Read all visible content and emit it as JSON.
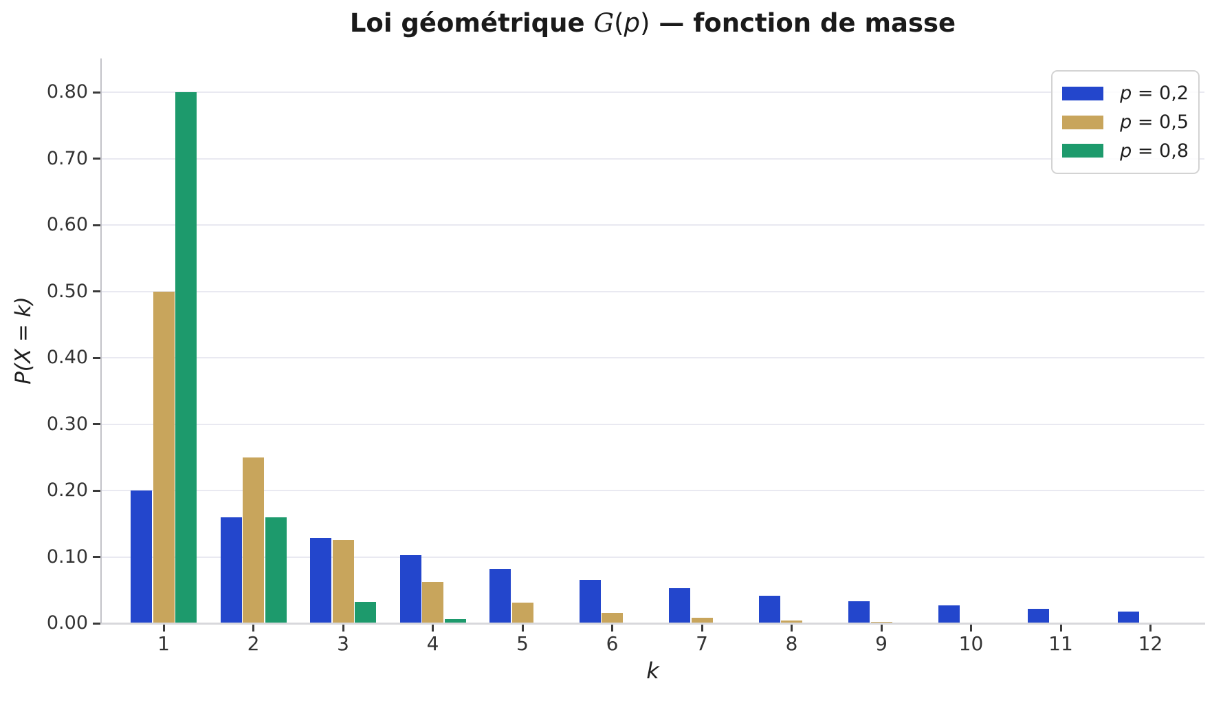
{
  "title": {
    "full_text": "Loi géométrique 𝒢(p) — fonction de masse",
    "segments": [
      {
        "text": "Loi géométrique "
      },
      {
        "text": "G"
      },
      {
        "text": "("
      },
      {
        "text": "p"
      },
      {
        "text": ")"
      },
      {
        "text": " — fonction de masse"
      }
    ]
  },
  "legend": {
    "entries": [
      {
        "var": "p",
        "rest": " = 0,2",
        "color": "#2346cc"
      },
      {
        "var": "p",
        "rest": " = 0,5",
        "color": "#c8a55c"
      },
      {
        "var": "p",
        "rest": " = 0,8",
        "color": "#1d9a6c"
      }
    ]
  },
  "chart_data": {
    "type": "bar",
    "title": "Loi géométrique 𝒢(p) — fonction de masse",
    "xlabel": "k",
    "ylabel": "P(X = k)",
    "categories": [
      1,
      2,
      3,
      4,
      5,
      6,
      7,
      8,
      9,
      10,
      11,
      12
    ],
    "series": [
      {
        "name": "p = 0,2",
        "color": "#2346cc",
        "values": [
          0.2,
          0.16,
          0.128,
          0.1024,
          0.08192,
          0.065536,
          0.0524288,
          0.04194304,
          0.03355443,
          0.02684355,
          0.02147484,
          0.01717987
        ]
      },
      {
        "name": "p = 0,5",
        "color": "#c8a55c",
        "values": [
          0.5,
          0.25,
          0.125,
          0.0625,
          0.03125,
          0.015625,
          0.0078125,
          0.00390625,
          0.00195313,
          0.00097656,
          0.00048828,
          0.00024414
        ]
      },
      {
        "name": "p = 0,8",
        "color": "#1d9a6c",
        "values": [
          0.8,
          0.16,
          0.032,
          0.0064,
          0.00128,
          0.000256,
          5.12e-05,
          1.024e-05,
          2.05e-06,
          4.1e-07,
          8e-08,
          2e-08
        ]
      }
    ],
    "ylim": [
      0,
      0.85
    ],
    "yticks": {
      "values": [
        0,
        0.1,
        0.2,
        0.3,
        0.4,
        0.5,
        0.6,
        0.7,
        0.8
      ],
      "labels": [
        "0.00",
        "0.10",
        "0.20",
        "0.30",
        "0.40",
        "0.50",
        "0.60",
        "0.70",
        "0.80"
      ]
    },
    "grid": "horizontal",
    "legend_position": "upper right"
  },
  "colors": {
    "grid": "#e9e9f1",
    "spine_left": "#c2c2c8",
    "spine_bottom": "#d8d8dc",
    "tick_mark": "#3a3a3a",
    "text": "#262626"
  }
}
